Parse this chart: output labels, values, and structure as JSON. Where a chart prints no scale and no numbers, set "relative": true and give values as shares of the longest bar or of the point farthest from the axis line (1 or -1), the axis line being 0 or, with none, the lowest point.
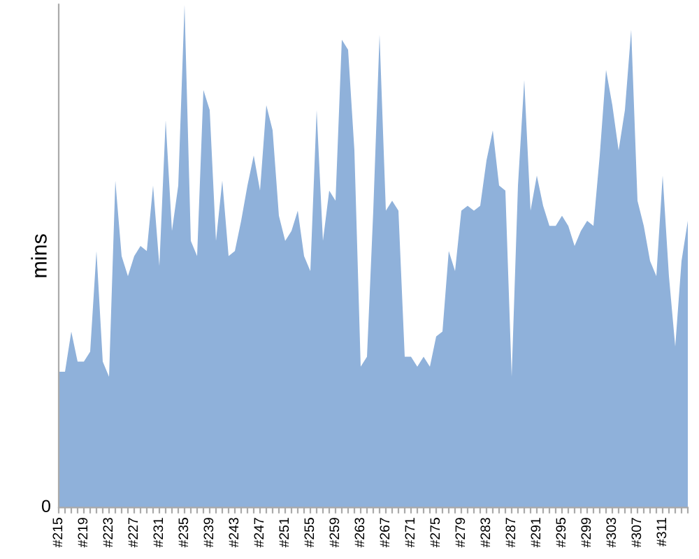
{
  "chart_data": {
    "type": "area",
    "relative": true,
    "ylabel": "mins",
    "color": "#8fb1da",
    "grid": false,
    "legend": false,
    "annotations": [
      "0"
    ],
    "categories": [
      "#215",
      null,
      null,
      null,
      "#219",
      null,
      null,
      null,
      "#223",
      null,
      null,
      null,
      "#227",
      null,
      null,
      null,
      "#231",
      null,
      null,
      null,
      "#235",
      null,
      null,
      null,
      "#239",
      null,
      null,
      null,
      "#243",
      null,
      null,
      null,
      "#247",
      null,
      null,
      null,
      "#251",
      null,
      null,
      null,
      "#255",
      null,
      null,
      null,
      "#259",
      null,
      null,
      null,
      "#263",
      null,
      null,
      null,
      "#267",
      null,
      null,
      null,
      "#271",
      null,
      null,
      null,
      "#275",
      null,
      null,
      null,
      "#279",
      null,
      null,
      null,
      "#283",
      null,
      null,
      null,
      "#287",
      null,
      null,
      null,
      "#291",
      null,
      null,
      null,
      "#295",
      null,
      null,
      null,
      "#299",
      null,
      null,
      null,
      "#303",
      null,
      null,
      null,
      "#307",
      null,
      null,
      null,
      "#311",
      null,
      null,
      null,
      null
    ],
    "values": [
      0.27,
      0.27,
      0.35,
      0.29,
      0.29,
      0.31,
      0.51,
      0.29,
      0.26,
      0.65,
      0.5,
      0.46,
      0.5,
      0.52,
      0.51,
      0.64,
      0.48,
      0.77,
      0.55,
      0.64,
      1,
      0.53,
      0.5,
      0.83,
      0.79,
      0.53,
      0.65,
      0.5,
      0.51,
      0.57,
      0.64,
      0.7,
      0.63,
      0.8,
      0.75,
      0.58,
      0.53,
      0.55,
      0.59,
      0.5,
      0.47,
      0.79,
      0.53,
      0.63,
      0.61,
      0.93,
      0.91,
      0.71,
      0.28,
      0.3,
      0.59,
      0.94,
      0.59,
      0.61,
      0.59,
      0.3,
      0.3,
      0.28,
      0.3,
      0.28,
      0.34,
      0.35,
      0.51,
      0.47,
      0.59,
      0.6,
      0.59,
      0.6,
      0.69,
      0.75,
      0.64,
      0.63,
      0.26,
      0.64,
      0.85,
      0.59,
      0.66,
      0.6,
      0.56,
      0.56,
      0.58,
      0.56,
      0.52,
      0.55,
      0.57,
      0.56,
      0.7,
      0.87,
      0.8,
      0.71,
      0.79,
      0.95,
      0.61,
      0.56,
      0.49,
      0.46,
      0.66,
      0.46,
      0.32,
      0.49,
      0.57
    ]
  }
}
